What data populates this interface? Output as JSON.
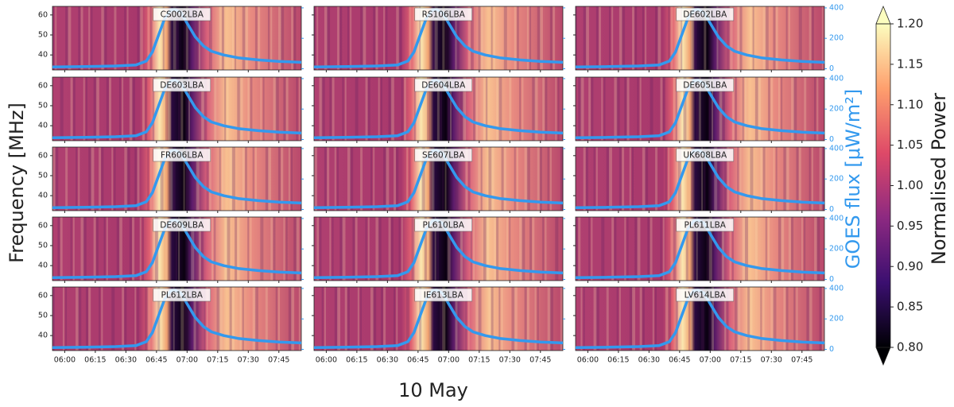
{
  "chart_data": {
    "type": "line",
    "xlabel": "10 May",
    "ylabel": "Frequency [MHz]",
    "y2label": "GOES flux [μW/m²]",
    "panels": [
      "CS002LBA",
      "RS106LBA",
      "DE602LBA",
      "DE603LBA",
      "DE604LBA",
      "DE605LBA",
      "FR606LBA",
      "SE607LBA",
      "UK608LBA",
      "DE609LBA",
      "PL610LBA",
      "PL611LBA",
      "PL612LBA",
      "IE613LBA",
      "LV614LBA"
    ],
    "xlim": [
      "05:54",
      "07:56"
    ],
    "xticks": [
      "06:00",
      "06:15",
      "06:30",
      "06:45",
      "07:00",
      "07:15",
      "07:30",
      "07:45"
    ],
    "ylim": [
      32.5,
      64.3
    ],
    "yticks": [
      40,
      50,
      60
    ],
    "y2lim": [
      -8,
      410
    ],
    "y2ticks": [
      0,
      200,
      400
    ],
    "series": [
      {
        "name": "GOES flux",
        "axis": "y2",
        "color": "#3399ee",
        "x": [
          "05:54",
          "06:10",
          "06:25",
          "06:35",
          "06:40",
          "06:43",
          "06:46",
          "06:49",
          "06:52",
          "06:54",
          "06:57",
          "07:00",
          "07:04",
          "07:08",
          "07:12",
          "07:18",
          "07:25",
          "07:35",
          "07:45",
          "07:56"
        ],
        "values": [
          12,
          14,
          18,
          25,
          50,
          110,
          220,
          330,
          385,
          390,
          370,
          300,
          210,
          150,
          115,
          90,
          72,
          58,
          48,
          42
        ]
      }
    ],
    "colorbar": {
      "label": "Normalised Power",
      "lim": [
        0.8,
        1.2
      ],
      "ticks": [
        {
          "value": 0.8,
          "label": "0.80"
        },
        {
          "value": 0.85,
          "label": "0.85"
        },
        {
          "value": 0.9,
          "label": "0.90"
        },
        {
          "value": 0.95,
          "label": "0.95"
        },
        {
          "value": 1.0,
          "label": "1.00"
        },
        {
          "value": 1.05,
          "label": "1.05"
        },
        {
          "value": 1.1,
          "label": "1.10"
        },
        {
          "value": 1.15,
          "label": "1.15"
        },
        {
          "value": 1.2,
          "label": "1.20"
        }
      ],
      "colors": [
        "#000004",
        "#3b0f70",
        "#8c2981",
        "#de4968",
        "#fe9f6d",
        "#fcfdbf"
      ]
    }
  }
}
